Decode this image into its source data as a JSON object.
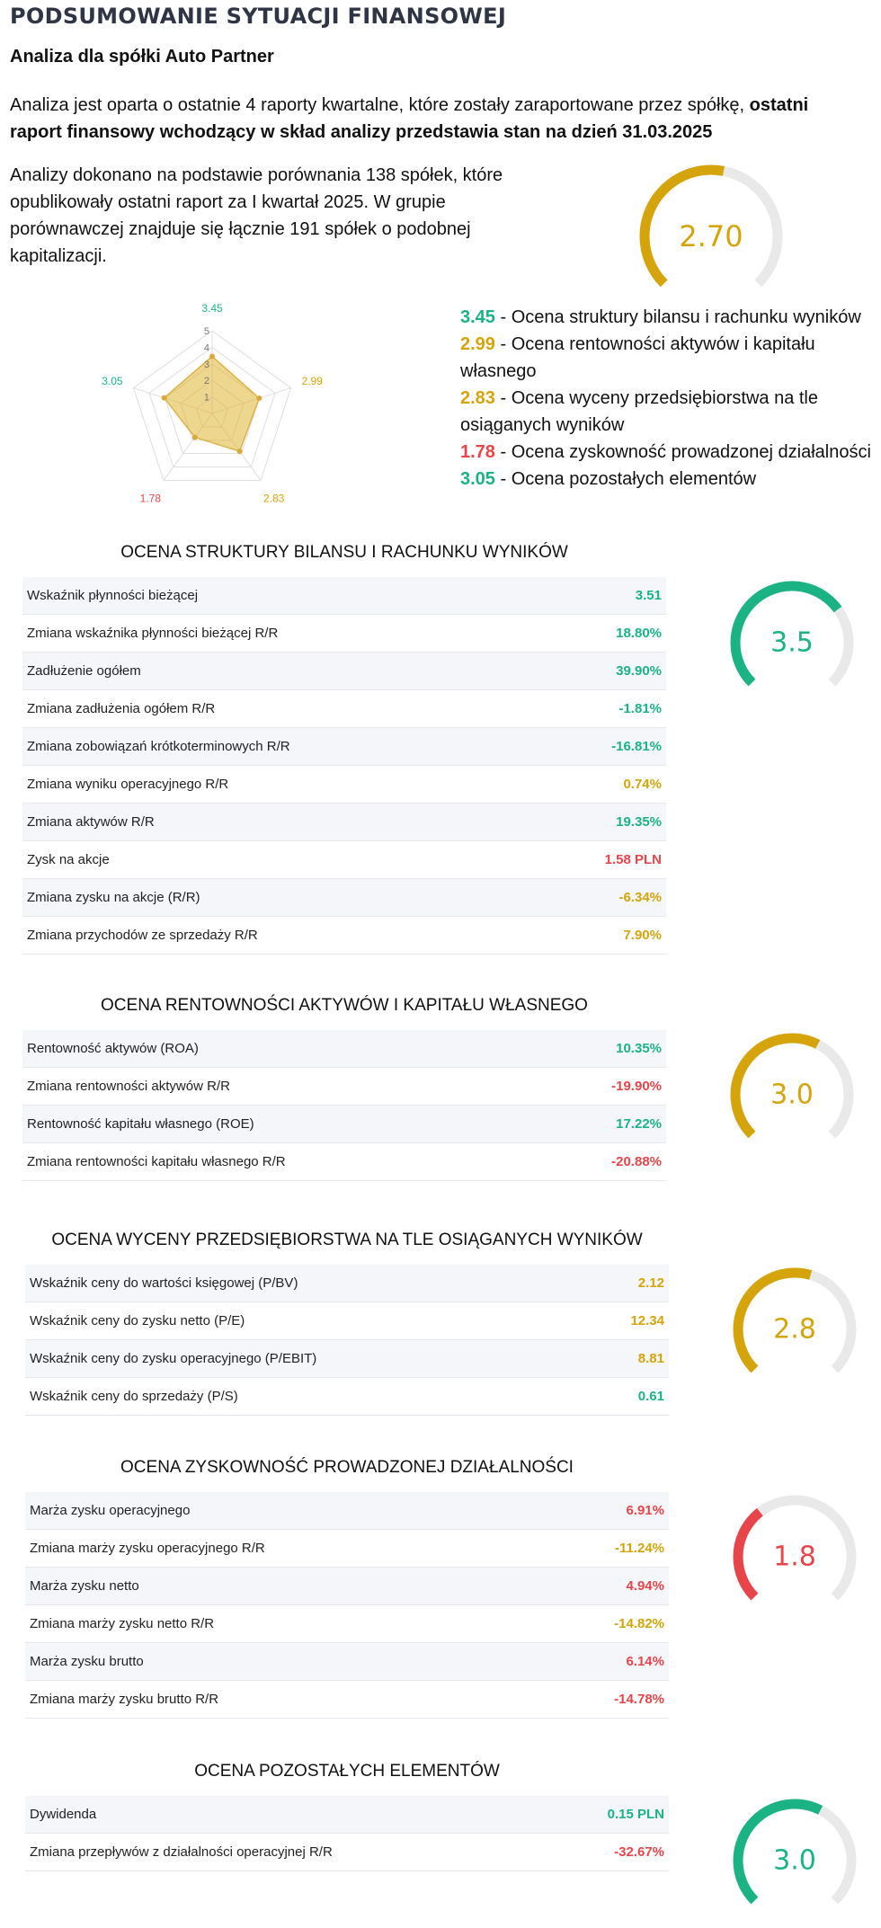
{
  "page": {
    "title": "PODSUMOWANIE SYTUACJI FINANSOWEJ",
    "subtitle": "Analiza dla spółki Auto Partner",
    "intro_text": "Analiza jest oparta o ostatnie 4 raporty kwartalne, które zostały zaraportowane przez spółkę, ",
    "intro_bold": "ostatni raport finansowy wchodzący w skład analizy przedstawia stan na dzień 31.03.2025",
    "peer_text": "Analizy dokonano na podstawie porównania 138 spółek, które opublikowały ostatni raport za I kwartał 2025. W grupie porównawczej znajduje się łącznie 191 spółek o podobnej kapitalizacji."
  },
  "overall_score": {
    "label": "2.70",
    "value": 2.7,
    "max": 5,
    "color": "#d4a40a"
  },
  "colors": {
    "green": "#1bb384",
    "yellow": "#d4a40a",
    "red": "#e8454a",
    "track": "#e9e9e9"
  },
  "radar": {
    "scale_labels": [
      "1",
      "2",
      "3",
      "4",
      "5"
    ],
    "max": 5,
    "axes": [
      {
        "value": 3.45,
        "label": "3.45",
        "color": "#1bb384"
      },
      {
        "value": 2.99,
        "label": "2.99",
        "color": "#d4a40a"
      },
      {
        "value": 2.83,
        "label": "2.83",
        "color": "#d4a40a"
      },
      {
        "value": 1.78,
        "label": "1.78",
        "color": "#e8454a"
      },
      {
        "value": 3.05,
        "label": "3.05",
        "color": "#1bb384"
      }
    ]
  },
  "legend": [
    {
      "value": "3.45",
      "text": " - Ocena struktury bilansu i rachunku wyników",
      "color": "#1bb384"
    },
    {
      "value": "2.99",
      "text": " - Ocena rentowności aktywów i kapitału własnego",
      "color": "#d4a40a"
    },
    {
      "value": "2.83",
      "text": " - Ocena wyceny przedsiębiorstwa na tle osiąganych wyników",
      "color": "#d4a40a"
    },
    {
      "value": "1.78",
      "text": " - Ocena zyskowność prowadzonej działalności",
      "color": "#e8454a"
    },
    {
      "value": "3.05",
      "text": " - Ocena pozostałych elementów",
      "color": "#1bb384"
    }
  ],
  "sections": [
    {
      "title": "OCENA STRUKTURY BILANSU I RACHUNKU WYNIKÓW",
      "score": {
        "label": "3.5",
        "value": 3.5,
        "color": "#1bb384"
      },
      "rows": [
        {
          "label": "Wskaźnik płynności bieżącej",
          "value": "3.51",
          "color": "#1bb384"
        },
        {
          "label": "Zmiana wskaźnika płynności bieżącej R/R",
          "value": "18.80%",
          "color": "#1bb384"
        },
        {
          "label": "Zadłużenie ogółem",
          "value": "39.90%",
          "color": "#1bb384"
        },
        {
          "label": "Zmiana zadłużenia ogółem R/R",
          "value": "-1.81%",
          "color": "#1bb384"
        },
        {
          "label": "Zmiana zobowiązań krótkoterminowych R/R",
          "value": "-16.81%",
          "color": "#1bb384"
        },
        {
          "label": "Zmiana wyniku operacyjnego R/R",
          "value": "0.74%",
          "color": "#d4a40a"
        },
        {
          "label": "Zmiana aktywów R/R",
          "value": "19.35%",
          "color": "#1bb384"
        },
        {
          "label": "Zysk na akcje",
          "value": "1.58 PLN",
          "color": "#e8454a"
        },
        {
          "label": "Zmiana zysku na akcje (R/R)",
          "value": "-6.34%",
          "color": "#d4a40a"
        },
        {
          "label": "Zmiana przychodów ze sprzedaży R/R",
          "value": "7.90%",
          "color": "#d4a40a"
        }
      ]
    },
    {
      "title": "OCENA RENTOWNOŚCI AKTYWÓW I KAPITAŁU WŁASNEGO",
      "score": {
        "label": "3.0",
        "value": 3.0,
        "color": "#d4a40a"
      },
      "rows": [
        {
          "label": "Rentowność aktywów (ROA)",
          "value": "10.35%",
          "color": "#1bb384"
        },
        {
          "label": "Zmiana rentowności aktywów R/R",
          "value": "-19.90%",
          "color": "#e8454a"
        },
        {
          "label": "Rentowność kapitału własnego (ROE)",
          "value": "17.22%",
          "color": "#1bb384"
        },
        {
          "label": "Zmiana rentowności kapitału własnego R/R",
          "value": "-20.88%",
          "color": "#e8454a"
        }
      ]
    },
    {
      "title": "OCENA WYCENY PRZEDSIĘBIORSTWA NA TLE OSIĄGANYCH WYNIKÓW",
      "score": {
        "label": "2.8",
        "value": 2.8,
        "color": "#d4a40a"
      },
      "rows": [
        {
          "label": "Wskaźnik ceny do wartości księgowej (P/BV)",
          "value": "2.12",
          "color": "#d4a40a"
        },
        {
          "label": "Wskaźnik ceny do zysku netto (P/E)",
          "value": "12.34",
          "color": "#d4a40a"
        },
        {
          "label": "Wskaźnik ceny do zysku operacyjnego (P/EBIT)",
          "value": "8.81",
          "color": "#d4a40a"
        },
        {
          "label": "Wskaźnik ceny do sprzedaży (P/S)",
          "value": "0.61",
          "color": "#1bb384"
        }
      ]
    },
    {
      "title": "OCENA ZYSKOWNOŚĆ PROWADZONEJ DZIAŁALNOŚCI",
      "score": {
        "label": "1.8",
        "value": 1.8,
        "color": "#e8454a"
      },
      "rows": [
        {
          "label": "Marża zysku operacyjnego",
          "value": "6.91%",
          "color": "#e8454a"
        },
        {
          "label": "Zmiana marży zysku operacyjnego R/R",
          "value": "-11.24%",
          "color": "#d4a40a"
        },
        {
          "label": "Marża zysku netto",
          "value": "4.94%",
          "color": "#e8454a"
        },
        {
          "label": "Zmiana marży zysku netto R/R",
          "value": "-14.82%",
          "color": "#d4a40a"
        },
        {
          "label": "Marża zysku brutto",
          "value": "6.14%",
          "color": "#e8454a"
        },
        {
          "label": "Zmiana marży zysku brutto R/R",
          "value": "-14.78%",
          "color": "#e8454a"
        }
      ]
    },
    {
      "title": "OCENA POZOSTAŁYCH ELEMENTÓW",
      "score": {
        "label": "3.0",
        "value": 3.0,
        "color": "#1bb384"
      },
      "rows": [
        {
          "label": "Dywidenda",
          "value": "0.15 PLN",
          "color": "#1bb384"
        },
        {
          "label": "Zmiana przepływów z działalności operacyjnej R/R",
          "value": "-32.67%",
          "color": "#e8454a"
        }
      ]
    }
  ]
}
